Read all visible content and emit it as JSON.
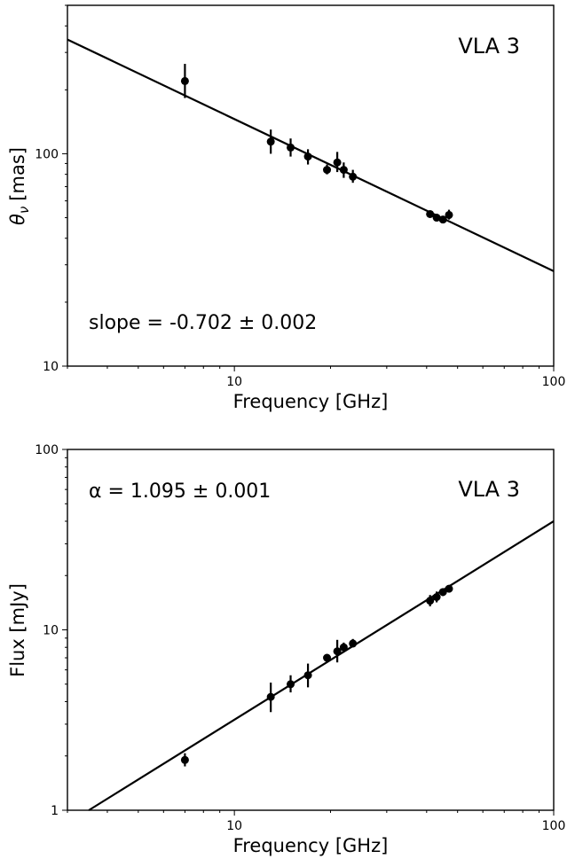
{
  "chart_data": [
    {
      "type": "scatter",
      "panel_label": "VLA 3",
      "annotation": "slope = -0.702 ± 0.002",
      "xlabel": "Frequency [GHz]",
      "ylabel": "θν [mas]",
      "ylabel_symbol": "θ",
      "ylabel_subscript": "ν",
      "ylabel_unit": "[mas]",
      "xscale": "log",
      "yscale": "log",
      "xlim": [
        3,
        100
      ],
      "ylim": [
        10,
        500
      ],
      "x_ticks": [
        10,
        100
      ],
      "x_tick_labels": [
        "10",
        "100"
      ],
      "y_ticks": [
        10,
        100
      ],
      "y_tick_labels": [
        "10",
        "100"
      ],
      "grid": false,
      "fit": {
        "slope": -0.702,
        "x": [
          3,
          100
        ],
        "y": [
          345,
          28
        ]
      },
      "points": [
        {
          "x": 7.0,
          "y": 220,
          "y_low": 183,
          "y_high": 265
        },
        {
          "x": 13.0,
          "y": 114,
          "y_low": 100,
          "y_high": 130
        },
        {
          "x": 15.0,
          "y": 107,
          "y_low": 97,
          "y_high": 118
        },
        {
          "x": 17.0,
          "y": 97,
          "y_low": 89,
          "y_high": 105
        },
        {
          "x": 19.5,
          "y": 84,
          "y_low": 80,
          "y_high": 89
        },
        {
          "x": 21.0,
          "y": 91,
          "y_low": 82,
          "y_high": 102
        },
        {
          "x": 22.0,
          "y": 84,
          "y_low": 77,
          "y_high": 91
        },
        {
          "x": 23.5,
          "y": 78,
          "y_low": 73,
          "y_high": 84
        },
        {
          "x": 41.0,
          "y": 52,
          "y_low": 50,
          "y_high": 54
        },
        {
          "x": 43.0,
          "y": 50,
          "y_low": 48.5,
          "y_high": 51.5
        },
        {
          "x": 45.0,
          "y": 49,
          "y_low": 47.5,
          "y_high": 50.5
        },
        {
          "x": 47.0,
          "y": 51.5,
          "y_low": 49,
          "y_high": 54.5
        }
      ]
    },
    {
      "type": "scatter",
      "panel_label": "VLA 3",
      "annotation": "α = 1.095 ± 0.001",
      "xlabel": "Frequency [GHz]",
      "ylabel": "Flux [mJy]",
      "xscale": "log",
      "yscale": "log",
      "xlim": [
        3,
        100
      ],
      "ylim": [
        1,
        100
      ],
      "x_ticks": [
        10,
        100
      ],
      "x_tick_labels": [
        "10",
        "100"
      ],
      "y_ticks": [
        1,
        10,
        100
      ],
      "y_tick_labels": [
        "1",
        "10",
        "100"
      ],
      "grid": false,
      "fit": {
        "slope": 1.095,
        "x": [
          3.5,
          100
        ],
        "y": [
          1.0,
          40
        ]
      },
      "points": [
        {
          "x": 7.0,
          "y": 1.9,
          "y_low": 1.75,
          "y_high": 2.07
        },
        {
          "x": 13.0,
          "y": 4.25,
          "y_low": 3.5,
          "y_high": 5.1
        },
        {
          "x": 15.0,
          "y": 5.0,
          "y_low": 4.5,
          "y_high": 5.6
        },
        {
          "x": 17.0,
          "y": 5.6,
          "y_low": 4.8,
          "y_high": 6.5
        },
        {
          "x": 19.5,
          "y": 7.0,
          "y_low": 6.7,
          "y_high": 7.3
        },
        {
          "x": 21.0,
          "y": 7.6,
          "y_low": 6.6,
          "y_high": 8.8
        },
        {
          "x": 22.0,
          "y": 8.0,
          "y_low": 7.5,
          "y_high": 8.5
        },
        {
          "x": 23.5,
          "y": 8.4,
          "y_low": 8.0,
          "y_high": 8.9
        },
        {
          "x": 41.0,
          "y": 14.5,
          "y_low": 13.5,
          "y_high": 15.6
        },
        {
          "x": 43.0,
          "y": 15.2,
          "y_low": 14.2,
          "y_high": 16.3
        },
        {
          "x": 45.0,
          "y": 16.2,
          "y_low": 15.4,
          "y_high": 17.0
        },
        {
          "x": 47.0,
          "y": 16.9,
          "y_low": 16.1,
          "y_high": 17.7
        }
      ]
    }
  ]
}
